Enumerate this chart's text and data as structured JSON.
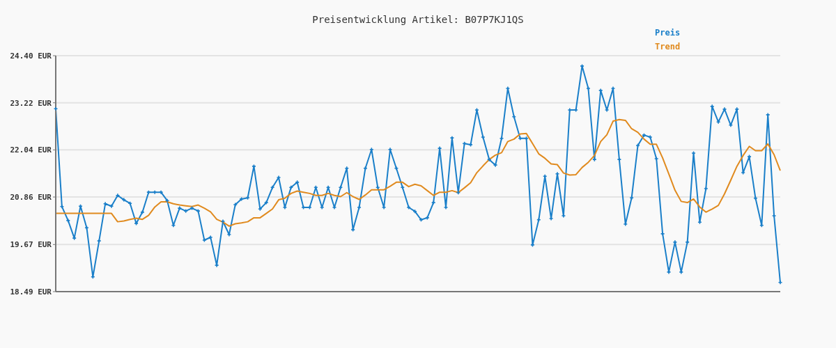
{
  "chart_data": {
    "type": "line",
    "title": "Preisentwicklung Artikel: B07P7KJ1QS",
    "categories": [
      null,
      null,
      null,
      null,
      null,
      null,
      null,
      null,
      null,
      null,
      null,
      null,
      null,
      null,
      null,
      null,
      null,
      null,
      null,
      null,
      null,
      null,
      null,
      null,
      null,
      null,
      null,
      null,
      null,
      null,
      null,
      null,
      null,
      null,
      null,
      null,
      null,
      null,
      null,
      null,
      null,
      null,
      null,
      null,
      null,
      null,
      null,
      null,
      null,
      null,
      null,
      null,
      null,
      null,
      null,
      null,
      null,
      null,
      null,
      null,
      null,
      null,
      null,
      null,
      null,
      null,
      null,
      null,
      null,
      null,
      null,
      null,
      null,
      null,
      null,
      null,
      null,
      null,
      null,
      null,
      null,
      null,
      null,
      null,
      null,
      null,
      null,
      null,
      null,
      null,
      null,
      null,
      null,
      null,
      null,
      null,
      null,
      null,
      null,
      null,
      null,
      null,
      null,
      null,
      null,
      null,
      null,
      null,
      null,
      null,
      null,
      null,
      null,
      null,
      null,
      null,
      null,
      null
    ],
    "series": [
      {
        "name": "Preis",
        "color": "#1a7fc9",
        "marker": "cross",
        "values": [
          23.07,
          20.62,
          20.27,
          19.83,
          20.63,
          20.09,
          18.86,
          19.76,
          20.69,
          20.63,
          20.9,
          20.79,
          20.7,
          20.2,
          20.48,
          20.98,
          20.98,
          20.98,
          20.77,
          20.15,
          20.58,
          20.51,
          20.58,
          20.51,
          19.78,
          19.85,
          19.15,
          20.25,
          19.92,
          20.67,
          20.81,
          20.84,
          21.63,
          20.56,
          20.72,
          21.1,
          21.35,
          20.6,
          21.1,
          21.23,
          20.6,
          20.6,
          21.1,
          20.6,
          21.1,
          20.6,
          21.1,
          21.58,
          20.04,
          20.6,
          21.58,
          22.05,
          21.1,
          20.6,
          22.05,
          21.58,
          21.1,
          20.6,
          20.5,
          20.29,
          20.34,
          20.72,
          22.08,
          20.6,
          22.34,
          20.97,
          22.2,
          22.17,
          23.04,
          22.36,
          21.8,
          21.66,
          22.33,
          23.58,
          22.87,
          22.33,
          22.33,
          19.66,
          20.29,
          21.38,
          20.32,
          21.44,
          20.39,
          23.04,
          23.04,
          24.14,
          23.58,
          21.8,
          23.53,
          23.04,
          23.58,
          21.8,
          20.18,
          20.84,
          22.15,
          22.41,
          22.36,
          21.82,
          19.94,
          18.98,
          19.73,
          18.98,
          19.73,
          21.96,
          20.23,
          21.07,
          23.13,
          22.74,
          23.06,
          22.66,
          23.06,
          21.47,
          21.87,
          20.83,
          20.15,
          22.92,
          20.39,
          18.72
        ]
      },
      {
        "name": "Trend",
        "color": "#e08a1e",
        "marker": "none",
        "values": [
          20.45,
          20.45,
          20.45,
          20.45,
          20.45,
          20.45,
          20.45,
          20.45,
          20.45,
          20.45,
          20.24,
          20.26,
          20.3,
          20.33,
          20.3,
          20.4,
          20.61,
          20.74,
          20.74,
          20.69,
          20.66,
          20.64,
          20.62,
          20.66,
          20.58,
          20.49,
          20.3,
          20.23,
          20.13,
          20.19,
          20.21,
          20.24,
          20.34,
          20.34,
          20.45,
          20.56,
          20.79,
          20.83,
          20.95,
          21.01,
          20.98,
          20.95,
          20.9,
          20.9,
          20.95,
          20.9,
          20.87,
          20.97,
          20.87,
          20.8,
          20.91,
          21.04,
          21.04,
          21.04,
          21.13,
          21.23,
          21.23,
          21.12,
          21.18,
          21.14,
          21.02,
          20.9,
          20.98,
          20.98,
          21.02,
          20.97,
          21.09,
          21.22,
          21.47,
          21.64,
          21.8,
          21.91,
          21.97,
          22.25,
          22.31,
          22.44,
          22.45,
          22.2,
          21.94,
          21.83,
          21.69,
          21.67,
          21.46,
          21.41,
          21.42,
          21.6,
          21.73,
          21.9,
          22.25,
          22.42,
          22.76,
          22.8,
          22.78,
          22.57,
          22.48,
          22.31,
          22.18,
          22.18,
          21.84,
          21.44,
          21.03,
          20.75,
          20.72,
          20.81,
          20.61,
          20.48,
          20.56,
          20.65,
          20.94,
          21.28,
          21.63,
          21.9,
          22.13,
          22.02,
          22.02,
          22.19,
          21.92,
          21.52
        ]
      }
    ],
    "ylim": [
      18.49,
      24.4
    ],
    "yticks": [
      {
        "value": 18.49,
        "label": "18.49 EUR"
      },
      {
        "value": 19.67,
        "label": "19.67 EUR"
      },
      {
        "value": 20.86,
        "label": "20.86 EUR"
      },
      {
        "value": 22.04,
        "label": "22.04 EUR"
      },
      {
        "value": 23.22,
        "label": "23.22 EUR"
      },
      {
        "value": 24.4,
        "label": "24.40 EUR"
      }
    ],
    "grid": "y",
    "legend": "top right",
    "tick_labels": "y",
    "line_style": "solid"
  }
}
